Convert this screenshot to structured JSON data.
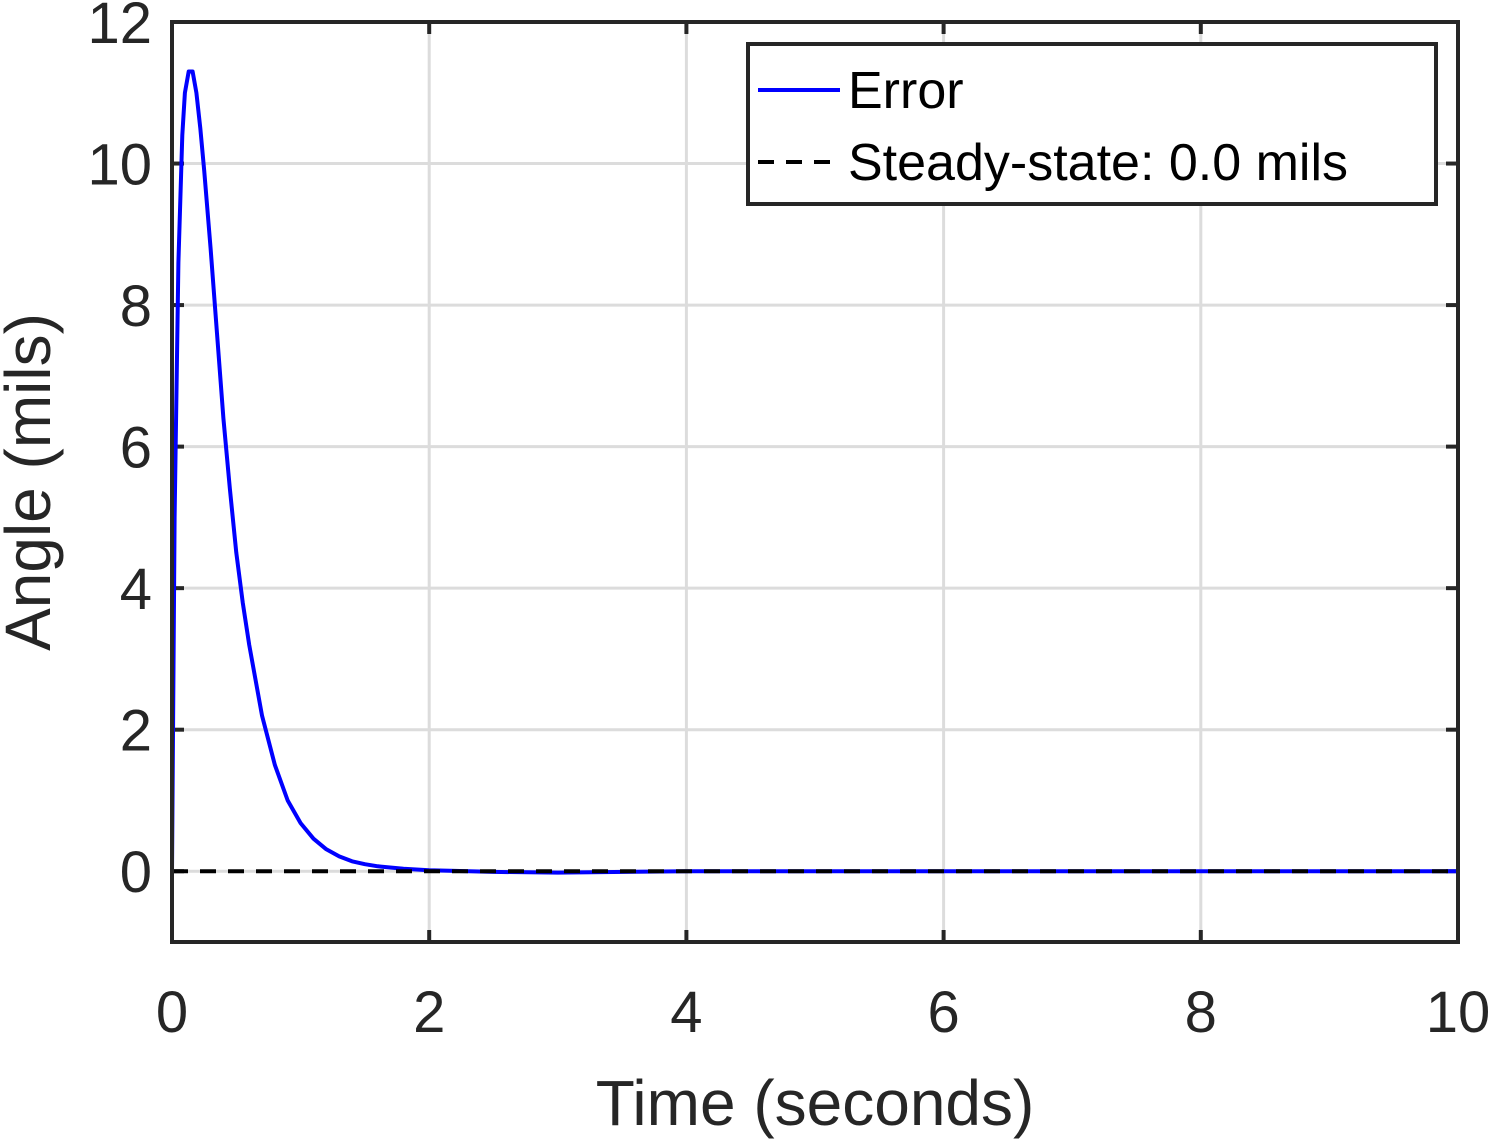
{
  "chart_data": {
    "type": "line",
    "xlabel": "Time (seconds)",
    "ylabel": "Angle (mils)",
    "xlim": [
      0,
      10
    ],
    "ylim": [
      -1,
      12
    ],
    "xticks": [
      0,
      2,
      4,
      6,
      8,
      10
    ],
    "yticks": [
      0,
      2,
      4,
      6,
      8,
      10,
      12
    ],
    "grid": true,
    "legend_position": "top-right",
    "series": [
      {
        "name": "Error",
        "color": "#0000ff",
        "style": "solid",
        "x": [
          0,
          0.02,
          0.05,
          0.08,
          0.1,
          0.13,
          0.16,
          0.19,
          0.22,
          0.25,
          0.3,
          0.35,
          0.4,
          0.45,
          0.5,
          0.55,
          0.6,
          0.7,
          0.8,
          0.9,
          1.0,
          1.1,
          1.2,
          1.3,
          1.4,
          1.5,
          1.6,
          1.8,
          2.0,
          2.2,
          2.5,
          3.0,
          4.0,
          5.0,
          6.0,
          7.0,
          8.0,
          9.0,
          10.0
        ],
        "y": [
          0,
          5.0,
          8.6,
          10.4,
          11.0,
          11.3,
          11.3,
          11.0,
          10.5,
          9.9,
          8.8,
          7.6,
          6.4,
          5.4,
          4.5,
          3.8,
          3.2,
          2.2,
          1.5,
          1.0,
          0.68,
          0.46,
          0.31,
          0.21,
          0.14,
          0.1,
          0.07,
          0.035,
          0.015,
          0.005,
          -0.01,
          -0.02,
          0,
          0,
          0,
          0,
          0,
          0,
          0
        ]
      },
      {
        "name": "Steady-state: 0.0 mils",
        "color": "#000000",
        "style": "dashed",
        "x": [
          0,
          10
        ],
        "y": [
          0,
          0
        ]
      }
    ]
  }
}
